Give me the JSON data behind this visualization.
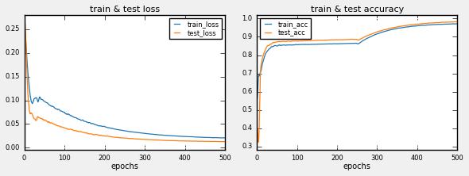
{
  "title_loss": "train & test loss",
  "title_acc": "train & test accuracy",
  "xlabel": "epochs",
  "legend_loss": [
    "train_loss",
    "test_loss"
  ],
  "legend_acc": [
    "train_acc",
    "test_acc"
  ],
  "train_color": "#1f77b4",
  "test_color": "#ff7f0e",
  "xlim_loss": [
    0,
    500
  ],
  "xlim_acc": [
    0,
    500
  ],
  "ylim_loss": [
    -0.005,
    0.28
  ],
  "ylim_acc": [
    0.28,
    1.02
  ],
  "yticks_loss": [
    0.0,
    0.05,
    0.1,
    0.15,
    0.2,
    0.25
  ],
  "yticks_acc": [
    0.3,
    0.4,
    0.5,
    0.6,
    0.7,
    0.8,
    0.9,
    1.0
  ],
  "xticks": [
    0,
    100,
    200,
    300,
    400,
    500
  ],
  "n_epochs": 500,
  "figsize": [
    5.9,
    2.22
  ],
  "dpi": 100,
  "bg_color": "#f0f0f0",
  "axes_bg": "#ffffff",
  "grid_color": "#ffffff",
  "grid_lw": 0.8,
  "line_lw": 0.9,
  "title_fontsize": 8,
  "tick_fontsize": 6,
  "label_fontsize": 7,
  "legend_fontsize": 6
}
